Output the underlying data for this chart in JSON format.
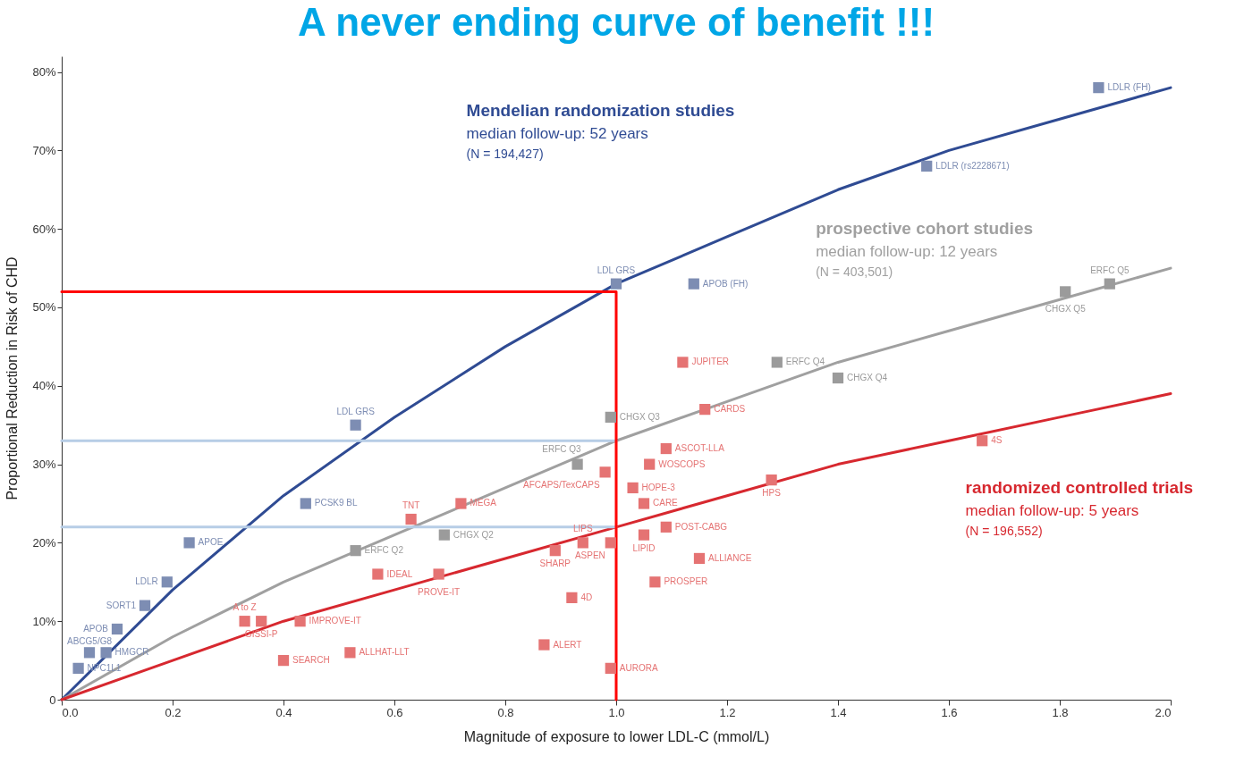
{
  "chart_data": {
    "type": "scatter",
    "title": "A never ending curve of benefit !!!",
    "xlabel": "Magnitude of exposure to lower LDL-C (mmol/L)",
    "ylabel": "Proportional Reduction in Risk of CHD",
    "xlim": [
      0,
      2.0
    ],
    "xticks": [
      {
        "value": 0,
        "label": "0.0"
      },
      0.2,
      0.4,
      0.6,
      0.8,
      {
        "value": 1.0,
        "label": "1.0"
      },
      1.2,
      1.4,
      1.6,
      1.8,
      {
        "value": 2.0,
        "label": "2.0"
      }
    ],
    "ylim": [
      0,
      82
    ],
    "yticks": [
      0,
      {
        "value": 10,
        "label": "10%"
      },
      {
        "value": 20,
        "label": "20%"
      },
      {
        "value": 30,
        "label": "30%"
      },
      {
        "value": 40,
        "label": "40%"
      },
      {
        "value": 50,
        "label": "50%"
      },
      {
        "value": 60,
        "label": "60%"
      },
      {
        "value": 70,
        "label": "70%"
      },
      {
        "value": 80,
        "label": "80%"
      }
    ],
    "series": [
      {
        "type": "line",
        "name": "Mendelian randomization studies",
        "color": "#2f4b93",
        "x": [
          0,
          0.2,
          0.4,
          0.6,
          0.8,
          1.0,
          1.2,
          1.4,
          1.6,
          1.8,
          2.0
        ],
        "values": [
          0,
          14,
          26,
          36,
          45,
          53,
          59,
          65,
          70,
          74,
          78
        ]
      },
      {
        "type": "line",
        "name": "prospective cohort studies",
        "color": "#a0a0a0",
        "x": [
          0,
          0.2,
          0.4,
          0.6,
          0.8,
          1.0,
          1.2,
          1.4,
          1.6,
          1.8,
          2.0
        ],
        "values": [
          0,
          8,
          15,
          21,
          27,
          33,
          38,
          43,
          47,
          51,
          55
        ]
      },
      {
        "type": "line",
        "name": "randomized controlled trials",
        "color": "#d7282f",
        "x": [
          0,
          0.2,
          0.4,
          0.6,
          0.8,
          1.0,
          1.2,
          1.4,
          1.6,
          1.8,
          2.0
        ],
        "values": [
          0,
          5,
          10,
          14,
          18,
          22,
          26,
          30,
          33,
          36,
          39
        ]
      },
      {
        "type": "line",
        "color": "#b7cde6",
        "x": [
          0,
          1.0
        ],
        "values": [
          33,
          33
        ]
      },
      {
        "type": "line",
        "color": "#b7cde6",
        "x": [
          0,
          1.0
        ],
        "values": [
          22,
          22
        ]
      },
      {
        "type": "line",
        "color": "#ff0000",
        "x": [
          0,
          1.0,
          1.0
        ],
        "values": [
          52,
          52,
          0
        ]
      },
      {
        "color": "#7d8db3",
        "marker": "square",
        "x": [
          0.03,
          0.05,
          0.08,
          0.1,
          0.15,
          0.19,
          0.23,
          0.44,
          0.53,
          1.0,
          1.14,
          1.56,
          1.87
        ],
        "values": [
          4,
          6,
          6,
          9,
          12,
          15,
          20,
          25,
          35,
          53,
          53,
          68,
          78
        ]
      },
      {
        "color": "#9b9b9b",
        "marker": "square",
        "x": [
          0.53,
          0.69,
          0.93,
          0.99,
          1.29,
          1.4,
          1.81,
          1.89
        ],
        "values": [
          19,
          21,
          30,
          36,
          43,
          41,
          52,
          53
        ]
      },
      {
        "color": "#e57373",
        "marker": "square",
        "x": [
          0.33,
          0.36,
          0.43,
          0.4,
          0.52,
          0.57,
          0.68,
          0.63,
          0.72,
          0.89,
          0.94,
          0.99,
          0.92,
          0.87,
          0.99,
          0.98,
          1.03,
          1.06,
          1.09,
          1.05,
          1.05,
          1.09,
          1.15,
          1.07,
          1.12,
          1.16,
          1.28,
          1.66
        ],
        "values": [
          10,
          10,
          10,
          5,
          6,
          16,
          16,
          23,
          25,
          19,
          20,
          20,
          13,
          7,
          4,
          29,
          27,
          30,
          32,
          25,
          21,
          22,
          18,
          15,
          43,
          37,
          28,
          33
        ]
      }
    ],
    "annotations": [
      "median follow-up: 52 years",
      "(N = 194,427)",
      "median follow-up: 12 years",
      "(N = 403,501)",
      "median follow-up: 5 years",
      "(N = 196,552)",
      {
        "text": "NPC1L1",
        "x": 0.03,
        "y": 4
      },
      {
        "text": "ABCG5/G8",
        "x": 0.05,
        "y": 6
      },
      {
        "text": "HMGCR",
        "x": 0.08,
        "y": 6
      },
      {
        "text": "APOB",
        "x": 0.1,
        "y": 9
      },
      {
        "text": "SORT1",
        "x": 0.15,
        "y": 12
      },
      {
        "text": "LDLR",
        "x": 0.19,
        "y": 15
      },
      {
        "text": "APOE",
        "x": 0.23,
        "y": 20
      },
      {
        "text": "PCSK9 BL",
        "x": 0.44,
        "y": 25
      },
      {
        "text": "LDL GRS",
        "x": 0.53,
        "y": 35
      },
      {
        "text": "LDL GRS",
        "x": 1.0,
        "y": 53
      },
      {
        "text": "APOB (FH)",
        "x": 1.14,
        "y": 53
      },
      {
        "text": "LDLR (rs2228671)",
        "x": 1.56,
        "y": 68
      },
      {
        "text": "LDLR (FH)",
        "x": 1.87,
        "y": 78
      },
      {
        "text": "ERFC Q2",
        "x": 0.53,
        "y": 19
      },
      {
        "text": "CHGX Q2",
        "x": 0.69,
        "y": 21
      },
      {
        "text": "ERFC Q3",
        "x": 0.93,
        "y": 30
      },
      {
        "text": "CHGX Q3",
        "x": 0.99,
        "y": 36
      },
      {
        "text": "ERFC Q4",
        "x": 1.29,
        "y": 43
      },
      {
        "text": "CHGX Q4",
        "x": 1.4,
        "y": 41
      },
      {
        "text": "CHGX Q5",
        "x": 1.81,
        "y": 52
      },
      {
        "text": "ERFC Q5",
        "x": 1.89,
        "y": 53
      },
      {
        "text": "A to Z",
        "x": 0.33,
        "y": 10
      },
      {
        "text": "GISSI-P",
        "x": 0.36,
        "y": 10
      },
      {
        "text": "IMPROVE-IT",
        "x": 0.43,
        "y": 10
      },
      {
        "text": "SEARCH",
        "x": 0.4,
        "y": 5
      },
      {
        "text": "ALLHAT-LLT",
        "x": 0.52,
        "y": 6
      },
      {
        "text": "IDEAL",
        "x": 0.57,
        "y": 16
      },
      {
        "text": "PROVE-IT",
        "x": 0.68,
        "y": 16
      },
      {
        "text": "TNT",
        "x": 0.63,
        "y": 23
      },
      {
        "text": "MEGA",
        "x": 0.72,
        "y": 25
      },
      {
        "text": "SHARP",
        "x": 0.89,
        "y": 19
      },
      {
        "text": "LIPS",
        "x": 0.94,
        "y": 20
      },
      {
        "text": "ASPEN",
        "x": 0.99,
        "y": 20
      },
      {
        "text": "4D",
        "x": 0.92,
        "y": 13
      },
      {
        "text": "ALERT",
        "x": 0.87,
        "y": 7
      },
      {
        "text": "AURORA",
        "x": 0.99,
        "y": 4
      },
      {
        "text": "AFCAPS/TexCAPS",
        "x": 0.98,
        "y": 29
      },
      {
        "text": "HOPE-3",
        "x": 1.03,
        "y": 27
      },
      {
        "text": "WOSCOPS",
        "x": 1.06,
        "y": 30
      },
      {
        "text": "ASCOT-LLA",
        "x": 1.09,
        "y": 32
      },
      {
        "text": "CARE",
        "x": 1.05,
        "y": 25
      },
      {
        "text": "LIPID",
        "x": 1.05,
        "y": 21
      },
      {
        "text": "POST-CABG",
        "x": 1.09,
        "y": 22
      },
      {
        "text": "ALLIANCE",
        "x": 1.15,
        "y": 18
      },
      {
        "text": "PROSPER",
        "x": 1.07,
        "y": 15
      },
      {
        "text": "JUPITER",
        "x": 1.12,
        "y": 43
      },
      {
        "text": "CARDS",
        "x": 1.16,
        "y": 37
      },
      {
        "text": "HPS",
        "x": 1.28,
        "y": 28
      },
      {
        "text": "4S",
        "x": 1.66,
        "y": 33
      }
    ]
  }
}
